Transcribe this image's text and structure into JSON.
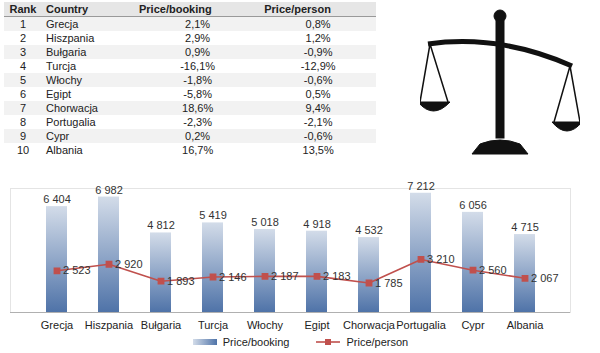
{
  "table": {
    "columns": [
      "Rank",
      "Country",
      "Price/booking",
      "Price/person"
    ],
    "rows": [
      [
        "1",
        "Grecja",
        "2,1%",
        "0,8%"
      ],
      [
        "2",
        "Hiszpania",
        "2,9%",
        "1,2%"
      ],
      [
        "3",
        "Bułgaria",
        "0,9%",
        "-0,9%"
      ],
      [
        "4",
        "Turcja",
        "-16,1%",
        "-12,9%"
      ],
      [
        "5",
        "Włochy",
        "-1,8%",
        "-0,6%"
      ],
      [
        "6",
        "Egipt",
        "-5,8%",
        "0,5%"
      ],
      [
        "7",
        "Chorwacja",
        "18,6%",
        "9,4%"
      ],
      [
        "8",
        "Portugalia",
        "-2,3%",
        "-2,1%"
      ],
      [
        "9",
        "Cypr",
        "0,2%",
        "-0,6%"
      ],
      [
        "10",
        "Albania",
        "16,7%",
        "13,5%"
      ]
    ]
  },
  "chart_data": {
    "type": "bar",
    "categories": [
      "Grecja",
      "Hiszpania",
      "Bułgaria",
      "Turcja",
      "Włochy",
      "Egipt",
      "Chorwacja",
      "Portugalia",
      "Cypr",
      "Albania"
    ],
    "series": [
      {
        "name": "Price/booking",
        "type": "bar",
        "color": "#4f73a8",
        "values": [
          6404,
          6982,
          4812,
          5419,
          5018,
          4918,
          4532,
          7212,
          6056,
          4715
        ],
        "value_labels": [
          "6 404",
          "6 982",
          "4 812",
          "5 419",
          "5 018",
          "4 918",
          "4 532",
          "7 212",
          "6 056",
          "4 715"
        ]
      },
      {
        "name": "Price/person",
        "type": "line",
        "color": "#c0504d",
        "marker": "square",
        "values": [
          2523,
          2920,
          1893,
          2146,
          2187,
          2183,
          1785,
          3210,
          2560,
          2067
        ],
        "value_labels": [
          "2 523",
          "2 920",
          "1 893",
          "2 146",
          "2 187",
          "2 183",
          "1 785",
          "3 210",
          "2 560",
          "2 067"
        ]
      }
    ],
    "ylim": [
      0,
      7500
    ],
    "tick_labels": "x",
    "data_labels": true,
    "legend": "bottom"
  }
}
